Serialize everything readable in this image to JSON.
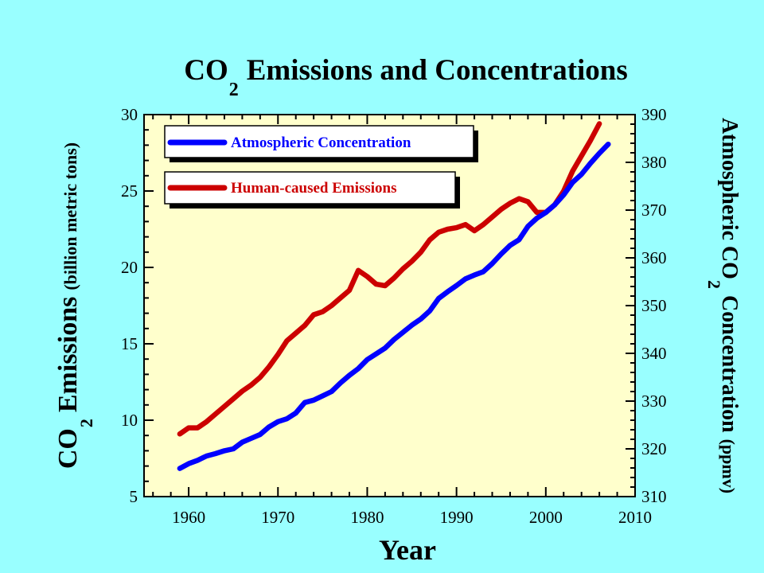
{
  "colors": {
    "background": "#99FFFF",
    "plot_background": "#FFFFCC",
    "concentration": "#0000FF",
    "emissions": "#CC0000"
  },
  "chart_data": {
    "type": "line",
    "title": {
      "prefix": "CO",
      "subscript": "2",
      "rest": "Emissions and Concentrations"
    },
    "xlabel": "Year",
    "ylabel_left": {
      "prefix": "CO",
      "subscript": "2",
      "main": "Emissions",
      "units": "(billion metric tons)"
    },
    "ylabel_right": {
      "prefix": "Atmospheric CO",
      "subscript": "2",
      "main": "Concentration",
      "units": "(ppmv)"
    },
    "xlim": [
      1955,
      2010
    ],
    "x_ticks": [
      "1960",
      "1970",
      "1980",
      "1990",
      "2000",
      "2010"
    ],
    "ylim_left": [
      5,
      30
    ],
    "y_left_ticks": [
      "5",
      "10",
      "15",
      "20",
      "25",
      "30"
    ],
    "ylim_right": [
      310,
      390
    ],
    "y_right_ticks": [
      "310",
      "320",
      "330",
      "340",
      "350",
      "360",
      "370",
      "380",
      "390"
    ],
    "grid": false,
    "legend_position": "top-left",
    "series": [
      {
        "name": "Atmospheric Concentration",
        "axis": "right",
        "color": "#0000FF",
        "x": [
          1959,
          1960,
          1961,
          1962,
          1963,
          1964,
          1965,
          1966,
          1967,
          1968,
          1969,
          1970,
          1971,
          1972,
          1973,
          1974,
          1975,
          1976,
          1977,
          1978,
          1979,
          1980,
          1981,
          1982,
          1983,
          1984,
          1985,
          1986,
          1987,
          1988,
          1989,
          1990,
          1991,
          1992,
          1993,
          1994,
          1995,
          1996,
          1997,
          1998,
          1999,
          2000,
          2001,
          2002,
          2003,
          2004,
          2005,
          2006,
          2007
        ],
        "values": [
          315.9,
          316.9,
          317.6,
          318.5,
          319.0,
          319.6,
          320.0,
          321.4,
          322.2,
          323.0,
          324.6,
          325.7,
          326.3,
          327.5,
          329.7,
          330.2,
          331.1,
          332.0,
          333.8,
          335.4,
          336.8,
          338.7,
          339.9,
          341.1,
          342.9,
          344.4,
          345.9,
          347.2,
          348.9,
          351.5,
          352.9,
          354.2,
          355.6,
          356.4,
          357.1,
          358.8,
          360.8,
          362.6,
          363.8,
          366.6,
          368.3,
          369.5,
          371.1,
          373.2,
          375.8,
          377.5,
          379.8,
          381.9,
          383.8
        ]
      },
      {
        "name": "Human-caused Emissions",
        "axis": "left",
        "color": "#CC0000",
        "x": [
          1959,
          1960,
          1961,
          1962,
          1963,
          1964,
          1965,
          1966,
          1967,
          1968,
          1969,
          1970,
          1971,
          1972,
          1973,
          1974,
          1975,
          1976,
          1977,
          1978,
          1979,
          1980,
          1981,
          1982,
          1983,
          1984,
          1985,
          1986,
          1987,
          1988,
          1989,
          1990,
          1991,
          1992,
          1993,
          1994,
          1995,
          1996,
          1997,
          1998,
          1999,
          2000,
          2001,
          2002,
          2003,
          2004,
          2005,
          2006
        ],
        "values": [
          9.1,
          9.5,
          9.5,
          9.9,
          10.4,
          10.9,
          11.4,
          11.9,
          12.3,
          12.8,
          13.5,
          14.3,
          15.2,
          15.7,
          16.2,
          16.9,
          17.1,
          17.5,
          18.0,
          18.5,
          19.8,
          19.4,
          18.9,
          18.8,
          19.3,
          19.9,
          20.4,
          21.0,
          21.8,
          22.3,
          22.5,
          22.6,
          22.8,
          22.4,
          22.8,
          23.3,
          23.8,
          24.2,
          24.5,
          24.3,
          23.6,
          23.6,
          24.1,
          25.0,
          26.3,
          27.3,
          28.3,
          29.4
        ]
      }
    ]
  }
}
